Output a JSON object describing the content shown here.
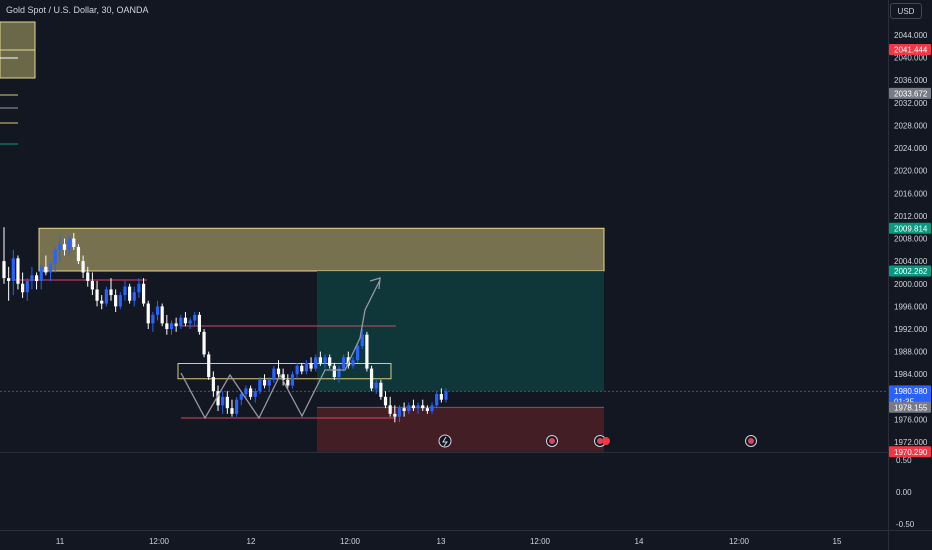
{
  "header": {
    "title": "Gold Spot / U.S. Dollar, 30, OANDA",
    "currency": "USD"
  },
  "chart_data": {
    "type": "candlestick",
    "symbol": "Gold Spot / U.S. Dollar",
    "interval": "30",
    "source": "OANDA",
    "y_axis": {
      "min": 1968,
      "max": 2046,
      "ticks": [
        2044,
        2040,
        2036,
        2032,
        2028,
        2024,
        2020,
        2016,
        2012,
        2008,
        2004,
        2000,
        1996,
        1992,
        1988,
        1984,
        1976,
        1972
      ]
    },
    "y_tick_labels": [
      "2044.000",
      "2040.000",
      "2036.000",
      "2032.000",
      "2028.000",
      "2024.000",
      "2020.000",
      "2016.000",
      "2012.000",
      "2008.000",
      "2004.000",
      "2000.000",
      "1996.000",
      "1992.000",
      "1988.000",
      "1984.000",
      "1976.000",
      "1972.000"
    ],
    "x_tick_labels": [
      "11",
      "12:00",
      "12",
      "12:00",
      "13",
      "12:00",
      "14",
      "12:00",
      "15"
    ],
    "price_labels": [
      {
        "text": "2041.444",
        "value": 2041.444,
        "color": "#f23645"
      },
      {
        "text": "2033.672",
        "value": 2033.672,
        "color": "#787b86"
      },
      {
        "text": "2009.814",
        "value": 2009.814,
        "color": "#089981"
      },
      {
        "text": "2002.262",
        "value": 2002.262,
        "color": "#089981"
      },
      {
        "text": "1980.980",
        "value": 1980.98,
        "color": "#2962ff",
        "subtext": "01:35"
      },
      {
        "text": "1978.155",
        "value": 1978.155,
        "color": "#787b86"
      },
      {
        "text": "1970.290",
        "value": 1970.29,
        "color": "#f23645"
      }
    ],
    "candles_ohlc": [
      [
        2004.0,
        2010.0,
        2000.0,
        2001.0
      ],
      [
        2001.0,
        2003.0,
        1997.0,
        2000.5
      ],
      [
        2000.5,
        2006.0,
        1998.0,
        2004.5
      ],
      [
        2004.5,
        2005.0,
        1999.0,
        2000.0
      ],
      [
        2000.0,
        2002.0,
        1997.5,
        1998.5
      ],
      [
        1998.5,
        2001.0,
        1997.0,
        2000.5
      ],
      [
        2000.5,
        2003.0,
        1999.0,
        2001.5
      ],
      [
        2001.5,
        2002.0,
        1999.0,
        2000.5
      ],
      [
        2000.5,
        2003.5,
        1999.0,
        2003.0
      ],
      [
        2003.0,
        2005.0,
        2001.5,
        2002.0
      ],
      [
        2002.0,
        2004.0,
        2000.5,
        2003.5
      ],
      [
        2003.5,
        2006.5,
        2002.0,
        2006.0
      ],
      [
        2006.0,
        2008.5,
        2004.0,
        2007.0
      ],
      [
        2007.0,
        2008.0,
        2005.0,
        2006.0
      ],
      [
        2006.0,
        2008.5,
        2005.0,
        2008.0
      ],
      [
        2008.0,
        2009.0,
        2006.0,
        2006.5
      ],
      [
        2006.5,
        2007.0,
        2003.5,
        2004.0
      ],
      [
        2004.0,
        2005.0,
        2001.0,
        2002.0
      ],
      [
        2002.0,
        2003.0,
        1999.5,
        2000.5
      ],
      [
        2000.5,
        2002.0,
        1998.0,
        1999.0
      ],
      [
        1999.0,
        2000.5,
        1996.0,
        1997.0
      ],
      [
        1997.0,
        1998.0,
        1995.5,
        1996.5
      ],
      [
        1996.5,
        1999.5,
        1996.0,
        1999.0
      ],
      [
        1999.0,
        2001.0,
        1997.0,
        1998.0
      ],
      [
        1998.0,
        1999.0,
        1995.0,
        1996.0
      ],
      [
        1996.0,
        1998.5,
        1995.5,
        1998.0
      ],
      [
        1998.0,
        2000.5,
        1997.0,
        1999.5
      ],
      [
        1999.5,
        2000.0,
        1996.5,
        1997.0
      ],
      [
        1997.0,
        1999.5,
        1996.0,
        1998.5
      ],
      [
        1998.5,
        2001.0,
        1997.5,
        2000.0
      ],
      [
        2000.0,
        2001.0,
        1996.0,
        1996.5
      ],
      [
        1996.5,
        1997.0,
        1992.0,
        1993.0
      ],
      [
        1993.0,
        1995.0,
        1991.5,
        1994.5
      ],
      [
        1994.5,
        1997.0,
        1993.5,
        1996.0
      ],
      [
        1996.0,
        1996.5,
        1992.5,
        1993.0
      ],
      [
        1993.0,
        1994.5,
        1991.0,
        1992.0
      ],
      [
        1992.0,
        1993.5,
        1991.0,
        1993.0
      ],
      [
        1993.0,
        1994.0,
        1991.5,
        1992.5
      ],
      [
        1992.5,
        1994.5,
        1992.0,
        1994.0
      ],
      [
        1994.0,
        1995.0,
        1992.5,
        1993.0
      ],
      [
        1993.0,
        1994.0,
        1992.0,
        1993.5
      ],
      [
        1993.5,
        1995.0,
        1992.5,
        1994.5
      ],
      [
        1994.5,
        1995.0,
        1991.0,
        1991.5
      ],
      [
        1991.5,
        1992.0,
        1987.0,
        1987.5
      ],
      [
        1987.5,
        1988.0,
        1983.0,
        1983.5
      ],
      [
        1983.5,
        1984.5,
        1980.0,
        1981.0
      ],
      [
        1981.0,
        1982.0,
        1977.5,
        1978.5
      ],
      [
        1978.5,
        1981.0,
        1977.0,
        1980.0
      ],
      [
        1980.0,
        1981.0,
        1977.0,
        1978.0
      ],
      [
        1978.0,
        1979.5,
        1976.5,
        1977.0
      ],
      [
        1977.0,
        1980.0,
        1976.5,
        1979.5
      ],
      [
        1979.5,
        1981.0,
        1978.5,
        1980.5
      ],
      [
        1980.5,
        1982.0,
        1979.5,
        1981.5
      ],
      [
        1981.5,
        1982.0,
        1979.5,
        1980.0
      ],
      [
        1980.0,
        1981.5,
        1979.0,
        1981.0
      ],
      [
        1981.0,
        1983.5,
        1980.5,
        1983.0
      ],
      [
        1983.0,
        1984.0,
        1981.5,
        1982.0
      ],
      [
        1982.0,
        1983.5,
        1981.0,
        1983.0
      ],
      [
        1983.0,
        1985.5,
        1982.5,
        1985.0
      ],
      [
        1985.0,
        1986.5,
        1983.5,
        1984.0
      ],
      [
        1984.0,
        1985.0,
        1982.0,
        1983.0
      ],
      [
        1983.0,
        1984.0,
        1981.5,
        1982.0
      ],
      [
        1982.0,
        1984.5,
        1981.5,
        1984.0
      ],
      [
        1984.0,
        1986.0,
        1983.0,
        1985.5
      ],
      [
        1985.5,
        1986.0,
        1984.0,
        1984.5
      ],
      [
        1984.5,
        1986.5,
        1984.0,
        1986.0
      ],
      [
        1986.0,
        1987.0,
        1984.5,
        1985.0
      ],
      [
        1985.0,
        1987.5,
        1984.5,
        1987.0
      ],
      [
        1987.0,
        1988.0,
        1985.5,
        1986.0
      ],
      [
        1986.0,
        1987.5,
        1985.0,
        1987.0
      ],
      [
        1987.0,
        1987.5,
        1985.0,
        1985.5
      ],
      [
        1985.5,
        1986.0,
        1983.0,
        1983.5
      ],
      [
        1983.5,
        1985.5,
        1982.5,
        1985.0
      ],
      [
        1985.0,
        1987.5,
        1984.5,
        1987.0
      ],
      [
        1987.0,
        1988.0,
        1985.0,
        1985.5
      ],
      [
        1985.5,
        1987.0,
        1985.0,
        1986.5
      ],
      [
        1986.5,
        1989.5,
        1986.0,
        1989.0
      ],
      [
        1989.0,
        1992.0,
        1988.5,
        1991.0
      ],
      [
        1991.0,
        1991.5,
        1984.5,
        1985.0
      ],
      [
        1985.0,
        1985.5,
        1981.0,
        1981.5
      ],
      [
        1981.5,
        1983.0,
        1980.5,
        1982.5
      ],
      [
        1982.5,
        1983.0,
        1979.5,
        1980.0
      ],
      [
        1980.0,
        1981.0,
        1978.0,
        1978.5
      ],
      [
        1978.5,
        1980.0,
        1976.5,
        1977.0
      ],
      [
        1977.0,
        1978.5,
        1975.5,
        1976.5
      ],
      [
        1976.5,
        1978.5,
        1975.5,
        1978.0
      ],
      [
        1978.0,
        1979.0,
        1976.5,
        1977.5
      ],
      [
        1977.5,
        1979.0,
        1977.0,
        1978.5
      ],
      [
        1978.5,
        1979.5,
        1977.5,
        1978.0
      ],
      [
        1978.0,
        1979.0,
        1977.0,
        1978.5
      ],
      [
        1978.5,
        1979.5,
        1977.5,
        1978.0
      ],
      [
        1978.0,
        1978.5,
        1977.0,
        1977.5
      ],
      [
        1977.5,
        1979.0,
        1977.0,
        1978.5
      ],
      [
        1978.5,
        1981.0,
        1978.0,
        1980.5
      ],
      [
        1980.5,
        1981.5,
        1979.0,
        1979.5
      ],
      [
        1979.5,
        1981.5,
        1979.0,
        1980.98
      ]
    ],
    "zones": [
      {
        "name": "supply-zone",
        "from": 2002.262,
        "to": 2009.814,
        "color": "#b5a96a"
      },
      {
        "name": "target-zone",
        "from": 1980.98,
        "to": 2002.262,
        "color": "#0f3d3e"
      },
      {
        "name": "stop-zone",
        "from": 1970.29,
        "to": 1978.155,
        "color": "#4a1f26"
      },
      {
        "name": "range-box",
        "from": 1983.3,
        "to": 1985.8,
        "color": "#c9c26a"
      }
    ],
    "oscillator_ticks": [
      "0.50",
      "0.00",
      "-0.50"
    ]
  }
}
